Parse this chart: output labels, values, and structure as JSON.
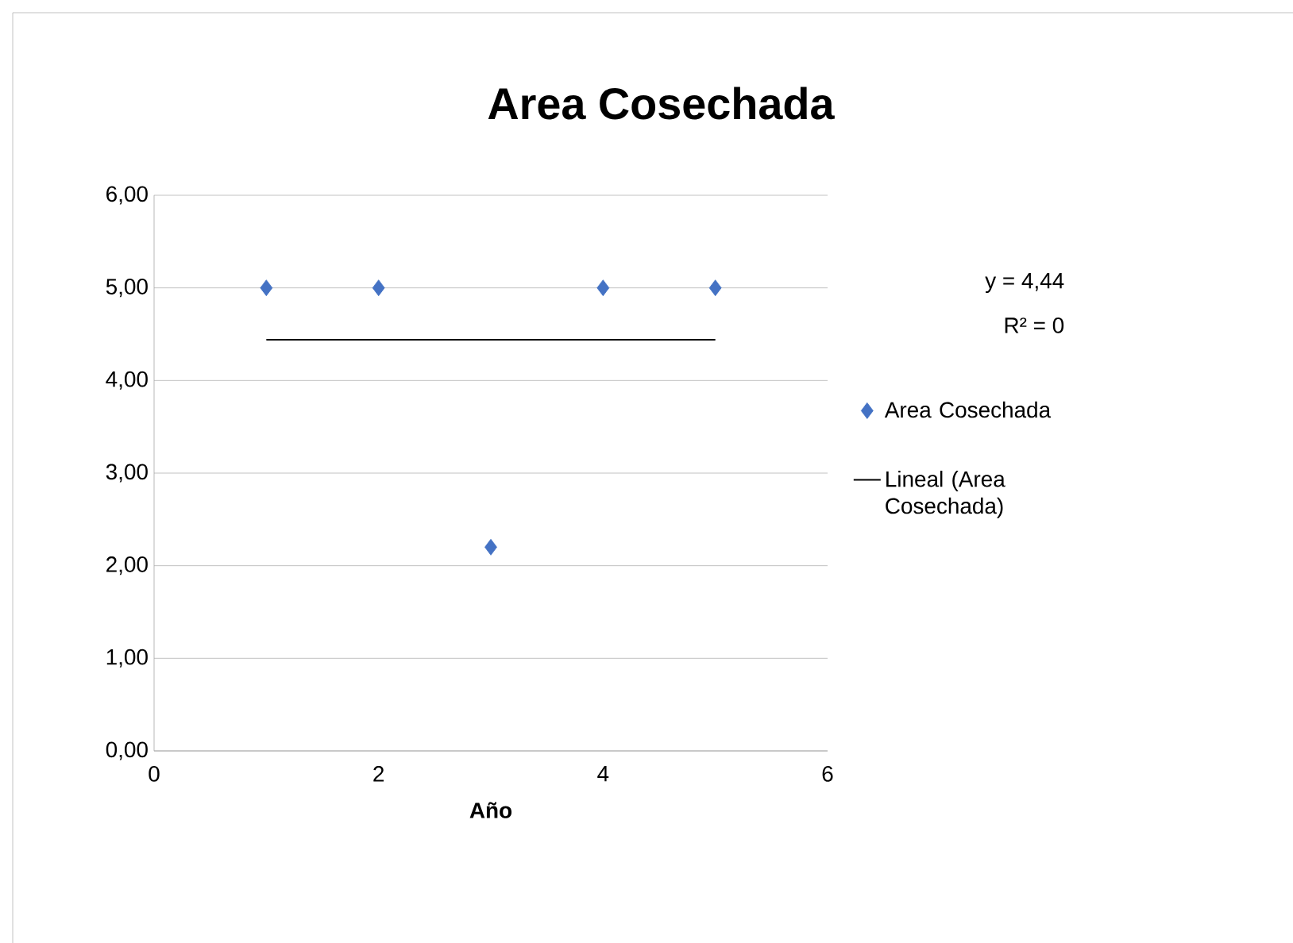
{
  "chart_data": {
    "type": "scatter",
    "title": "Area Cosechada",
    "xlabel": "Año",
    "x": [
      1,
      2,
      3,
      4,
      5
    ],
    "series": [
      {
        "name": "Area Cosechada",
        "color": "#4472c4",
        "marker": "diamond",
        "values": [
          5,
          5,
          2.2,
          5,
          5
        ]
      },
      {
        "name": "Lineal (Area Cosechada)",
        "type": "line",
        "color": "#000000",
        "x": [
          1,
          5
        ],
        "values": [
          4.44,
          4.44
        ],
        "line_style": "solid"
      }
    ],
    "xlim": [
      0,
      6
    ],
    "xticks": [
      0,
      2,
      4,
      6
    ],
    "ylim": [
      0,
      6
    ],
    "yticks": [
      {
        "value": 0,
        "label": "0,00"
      },
      {
        "value": 1,
        "label": "1,00"
      },
      {
        "value": 2,
        "label": "2,00"
      },
      {
        "value": 3,
        "label": "3,00"
      },
      {
        "value": 4,
        "label": "4,00"
      },
      {
        "value": 5,
        "label": "5,00"
      },
      {
        "value": 6,
        "label": "6,00"
      }
    ],
    "grid": "y",
    "legend": "right",
    "annotations": [
      "y = 4,44",
      "R² = 0"
    ]
  }
}
